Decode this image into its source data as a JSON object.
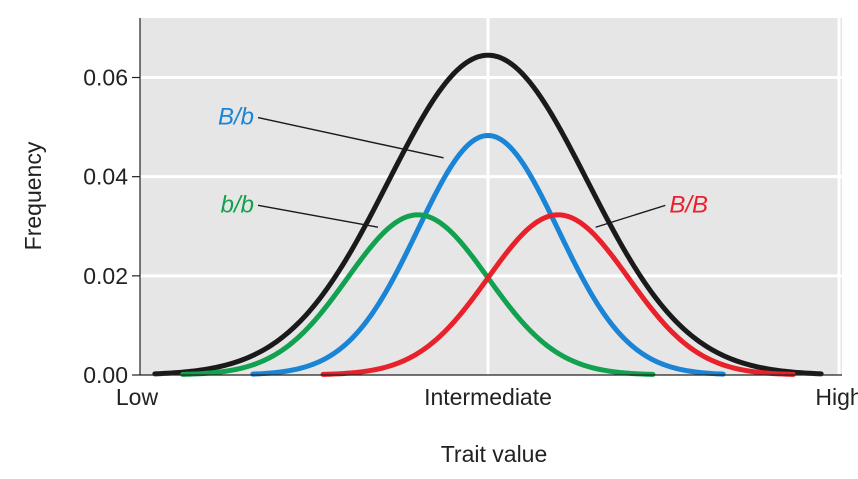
{
  "chart_data": {
    "type": "line",
    "xlabel": "Trait value",
    "ylabel": "Frequency",
    "xlim": [
      -3.0,
      3.0
    ],
    "ylim": [
      0,
      0.072
    ],
    "x_ticks": [
      {
        "value": -3,
        "label": "Low"
      },
      {
        "value": 0,
        "label": "Intermediate"
      },
      {
        "value": 3,
        "label": "High"
      }
    ],
    "y_ticks": [
      {
        "value": 0.0,
        "label": "0.00"
      },
      {
        "value": 0.02,
        "label": "0.02"
      },
      {
        "value": 0.04,
        "label": "0.04"
      },
      {
        "value": 0.06,
        "label": "0.06"
      }
    ],
    "grid": true,
    "background_color": "#e6e6e6",
    "series": [
      {
        "key": "total",
        "mean": 0.0,
        "sd": 0.85,
        "peak": 0.0645,
        "color": "#1a1a1a"
      },
      {
        "key": "Bb",
        "name": "B/b",
        "mean": 0.0,
        "sd": 0.6,
        "peak": 0.0483,
        "color": "#1a85d6"
      },
      {
        "key": "bb",
        "name": "b/b",
        "mean": -0.6,
        "sd": 0.6,
        "peak": 0.0323,
        "color": "#12a14e"
      },
      {
        "key": "BB",
        "name": "B/B",
        "mean": 0.6,
        "sd": 0.6,
        "peak": 0.0323,
        "color": "#e8212b"
      }
    ],
    "annotations": [
      {
        "text": "B/b",
        "series": "Bb",
        "x": -2.0,
        "y": 0.0505,
        "point_x": -0.38,
        "point_y": 0.0438,
        "anchor": "end"
      },
      {
        "text": "b/b",
        "series": "bb",
        "x": -2.0,
        "y": 0.0328,
        "point_x": -0.94,
        "point_y": 0.0298,
        "anchor": "end"
      },
      {
        "text": "B/B",
        "series": "BB",
        "x": 1.55,
        "y": 0.0328,
        "point_x": 0.92,
        "point_y": 0.0298,
        "anchor": "start"
      }
    ]
  }
}
